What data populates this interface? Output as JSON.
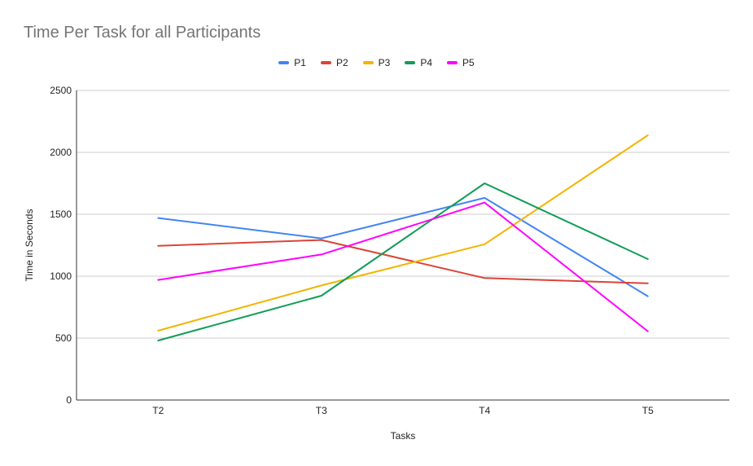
{
  "chart_data": {
    "type": "line",
    "title": "Time Per Task for all Participants",
    "xlabel": "Tasks",
    "ylabel": "Time in Seconds",
    "categories": [
      "T2",
      "T3",
      "T4",
      "T5"
    ],
    "ylim": [
      0,
      2500
    ],
    "yticks": [
      0,
      500,
      1000,
      1500,
      2000,
      2500
    ],
    "grid": true,
    "legend_position": "top",
    "series": [
      {
        "name": "P1",
        "color": "#4285F4",
        "values": [
          1470,
          1305,
          1632,
          838
        ]
      },
      {
        "name": "P2",
        "color": "#DB4437",
        "values": [
          1245,
          1292,
          985,
          942
        ]
      },
      {
        "name": "P3",
        "color": "#F4B400",
        "values": [
          560,
          925,
          1258,
          2138
        ]
      },
      {
        "name": "P4",
        "color": "#0F9D58",
        "values": [
          480,
          842,
          1750,
          1138
        ]
      },
      {
        "name": "P5",
        "color": "#FF00FF",
        "values": [
          970,
          1175,
          1595,
          555
        ]
      }
    ]
  }
}
